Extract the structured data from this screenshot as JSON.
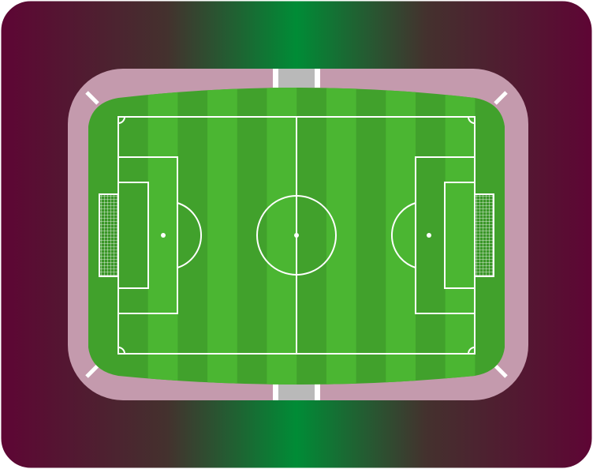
{
  "illustration": {
    "subject": "football-stadium-top-view",
    "colors": {
      "outer_edge": "#5e0534",
      "outer_mid": "#44312e",
      "outer_center": "#008c36",
      "track": "#c49aad",
      "grass_dark": "#41a12c",
      "grass_light": "#4bb632",
      "lines": "#ffffff",
      "tunnel": "#b9b9b9",
      "goal_net": "#ffffff"
    },
    "icons": [
      "soccer-field",
      "goal-net",
      "tunnel-entrance"
    ]
  }
}
